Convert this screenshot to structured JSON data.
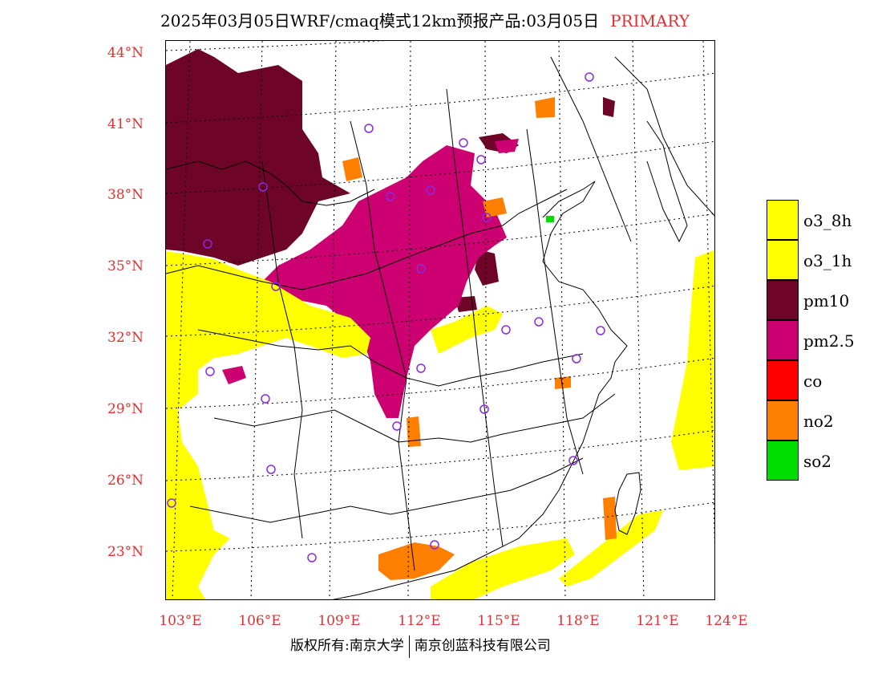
{
  "title": {
    "main": "2025年03月05日WRF/cmaq模式12km预报产品:03月05日",
    "tag": "PRIMARY"
  },
  "latitude_labels": [
    "44°N",
    "41°N",
    "38°N",
    "35°N",
    "32°N",
    "29°N",
    "26°N",
    "23°N"
  ],
  "longitude_labels": [
    "103°E",
    "106°E",
    "109°E",
    "112°E",
    "115°E",
    "118°E",
    "121°E",
    "124°E"
  ],
  "legend": [
    {
      "label": "o3_8h",
      "color": "#ffff00"
    },
    {
      "label": "o3_1h",
      "color": "#ffff00"
    },
    {
      "label": "pm10",
      "color": "#6e0528"
    },
    {
      "label": "pm2.5",
      "color": "#cc0070"
    },
    {
      "label": "co",
      "color": "#ff0000"
    },
    {
      "label": "no2",
      "color": "#ff7f00"
    },
    {
      "label": "so2",
      "color": "#00dd00"
    }
  ],
  "footer": {
    "left": "版权所有:南京大学",
    "right": "南京创蓝科技有限公司"
  },
  "colors": {
    "o3": "#ffff00",
    "pm10": "#6e0528",
    "pm25": "#cc0070",
    "no2": "#ff7f00",
    "so2": "#00dd00",
    "station": "#8a2be2",
    "axis_label": "#e03030"
  }
}
